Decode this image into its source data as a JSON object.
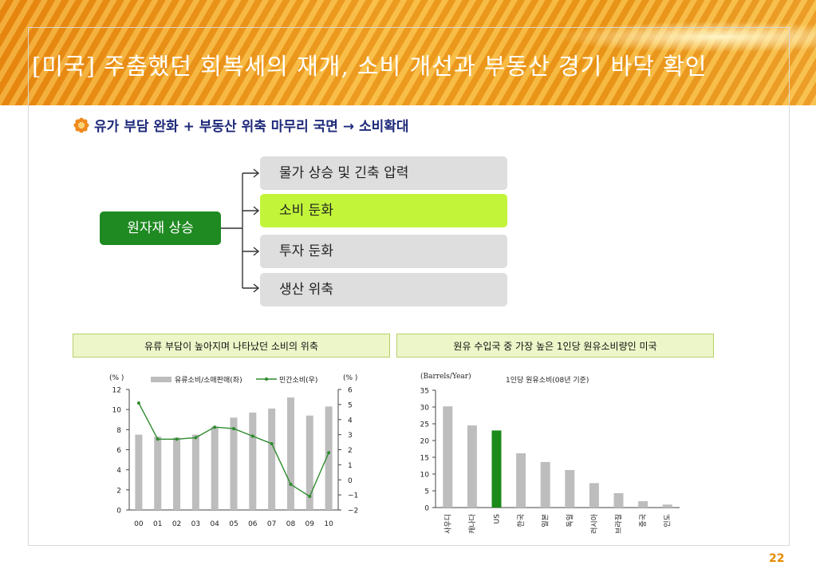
{
  "slide": {
    "title": "[미국] 주춤했던 회복세의 재개, 소비 개선과 부동산 경기 바닥 확인",
    "subtitle": "유가 부담 완화 + 부동산 위축 마무리 국면 → 소비확대",
    "page_number": "22"
  },
  "diagram": {
    "cause": "원자재 상승",
    "effects": [
      "물가 상승 및 긴축 압력",
      "소비 둔화",
      "투자 둔화",
      "생산 위축"
    ],
    "highlight_index": 1,
    "colors": {
      "cause": "#1f8a22",
      "effect": "#dedede",
      "highlight": "#c2f53a"
    }
  },
  "captions": {
    "left": "유류 부담이 높아지며 나타났던 소비의 위축",
    "right": "원유 수입국 중 가장 높은 1인당 원유소비량인 미국"
  },
  "chart_data": [
    {
      "type": "bar+line",
      "categories": [
        "00",
        "01",
        "02",
        "03",
        "04",
        "05",
        "06",
        "07",
        "08",
        "09",
        "10"
      ],
      "left_unit": "(% )",
      "right_unit": "(% )",
      "y_left": {
        "min": 0,
        "max": 12,
        "step": 2
      },
      "y_right": {
        "min": -2,
        "max": 6,
        "step": 1
      },
      "y_right_tick_labels": [
        "−2",
        "−1",
        "0",
        "1",
        "2",
        "3",
        "4",
        "5",
        "6"
      ],
      "series": [
        {
          "name": "유류소비/소매판매(좌)",
          "type": "bar",
          "axis": "left",
          "color": "#bdbdbd",
          "values": [
            7.5,
            7.3,
            7.2,
            7.5,
            8.3,
            9.2,
            9.7,
            10.1,
            11.2,
            9.4,
            10.3
          ]
        },
        {
          "name": "민간소비(우)",
          "type": "line",
          "axis": "right",
          "color": "#2e8b2e",
          "values": [
            5.1,
            2.7,
            2.7,
            2.8,
            3.5,
            3.4,
            2.9,
            2.4,
            -0.3,
            -1.1,
            1.8
          ]
        }
      ],
      "legend_position": "top"
    },
    {
      "type": "bar",
      "unit_label": "(Barrels/Year)",
      "title": "1인당 원유소비(08년 기준)",
      "categories": [
        "사우디",
        "캐나다",
        "US",
        "한국",
        "일본",
        "독일",
        "러시아",
        "브라질",
        "중국",
        "인도"
      ],
      "values": [
        30.2,
        24.5,
        23.0,
        16.2,
        13.6,
        11.2,
        7.3,
        4.3,
        1.9,
        0.9
      ],
      "highlight_index": 2,
      "ylim": [
        0,
        35
      ],
      "y_step": 5,
      "colors": {
        "bar": "#bdbdbd",
        "highlight": "#1a8a1a"
      }
    }
  ]
}
